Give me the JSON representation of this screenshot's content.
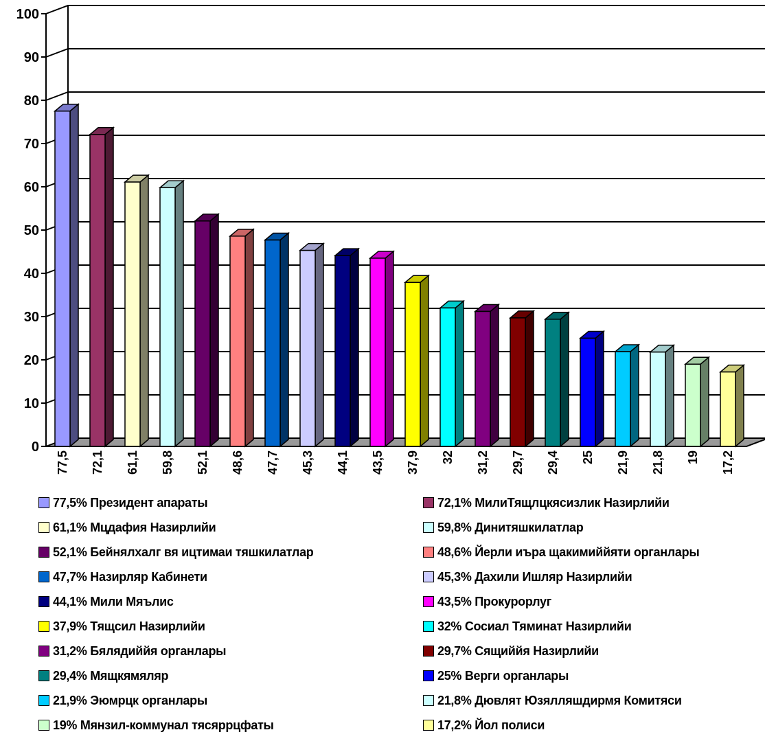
{
  "chart_data": {
    "type": "bar",
    "style": "3d-column",
    "ylim": [
      0,
      100
    ],
    "yticks": [
      0,
      10,
      20,
      30,
      40,
      50,
      60,
      70,
      80,
      90,
      100
    ],
    "grid": true,
    "legend_position": "bottom",
    "categories": [
      "77,5",
      "72,1",
      "61,1",
      "59,8",
      "52,1",
      "48,6",
      "47,7",
      "45,3",
      "44,1",
      "43,5",
      "37,9",
      "32",
      "31,2",
      "29,7",
      "29,4",
      "25",
      "21,9",
      "21,8",
      "19",
      "17,2"
    ],
    "values": [
      77.5,
      72.1,
      61.1,
      59.8,
      52.1,
      48.6,
      47.7,
      45.3,
      44.1,
      43.5,
      37.9,
      32,
      31.2,
      29.7,
      29.4,
      25,
      21.9,
      21.8,
      19,
      17.2
    ],
    "colors": [
      "#9999ff",
      "#993366",
      "#ffffcc",
      "#ccffff",
      "#660066",
      "#ff8080",
      "#0066cc",
      "#ccccff",
      "#000080",
      "#ff00ff",
      "#ffff00",
      "#00ffff",
      "#800080",
      "#800000",
      "#008080",
      "#0000ff",
      "#00ccff",
      "#ccffff",
      "#ccffcc",
      "#ffff99"
    ],
    "series": [
      {
        "name": "77,5% Президент апараты"
      },
      {
        "name": "72,1% МилиТящлцкясизлик Назирлийи"
      },
      {
        "name": "61,1% Мцдафия Назирлийи"
      },
      {
        "name": "59,8% Динитяшкилатлар"
      },
      {
        "name": "52,1% Бейнялхалг вя ицтимаи тяшкилатлар"
      },
      {
        "name": "48,6% Йерли иъра щакимиййяти органлары"
      },
      {
        "name": "47,7% Назирляр Кабинети"
      },
      {
        "name": "45,3% Дахили Ишляр Назирлийи"
      },
      {
        "name": "44,1% Мили Мяълис"
      },
      {
        "name": "43,5% Прокурорлуг"
      },
      {
        "name": "37,9% Тящсил Назирлийи"
      },
      {
        "name": "32% Сосиал Тяминат Назирлийи"
      },
      {
        "name": "31,2% Бялядиййя органлары"
      },
      {
        "name": "29,7% Сящиййя Назирлийи"
      },
      {
        "name": "29,4% Мящкямяляр"
      },
      {
        "name": "25% Верги органлары"
      },
      {
        "name": "21,9% Эюмрцк органлары"
      },
      {
        "name": "21,8% Дювлят Юзялляшдирмя Комитяси"
      },
      {
        "name": "19% Мянзил-коммунал тясяррцфаты"
      },
      {
        "name": "17,2% Йол полиси"
      }
    ]
  }
}
